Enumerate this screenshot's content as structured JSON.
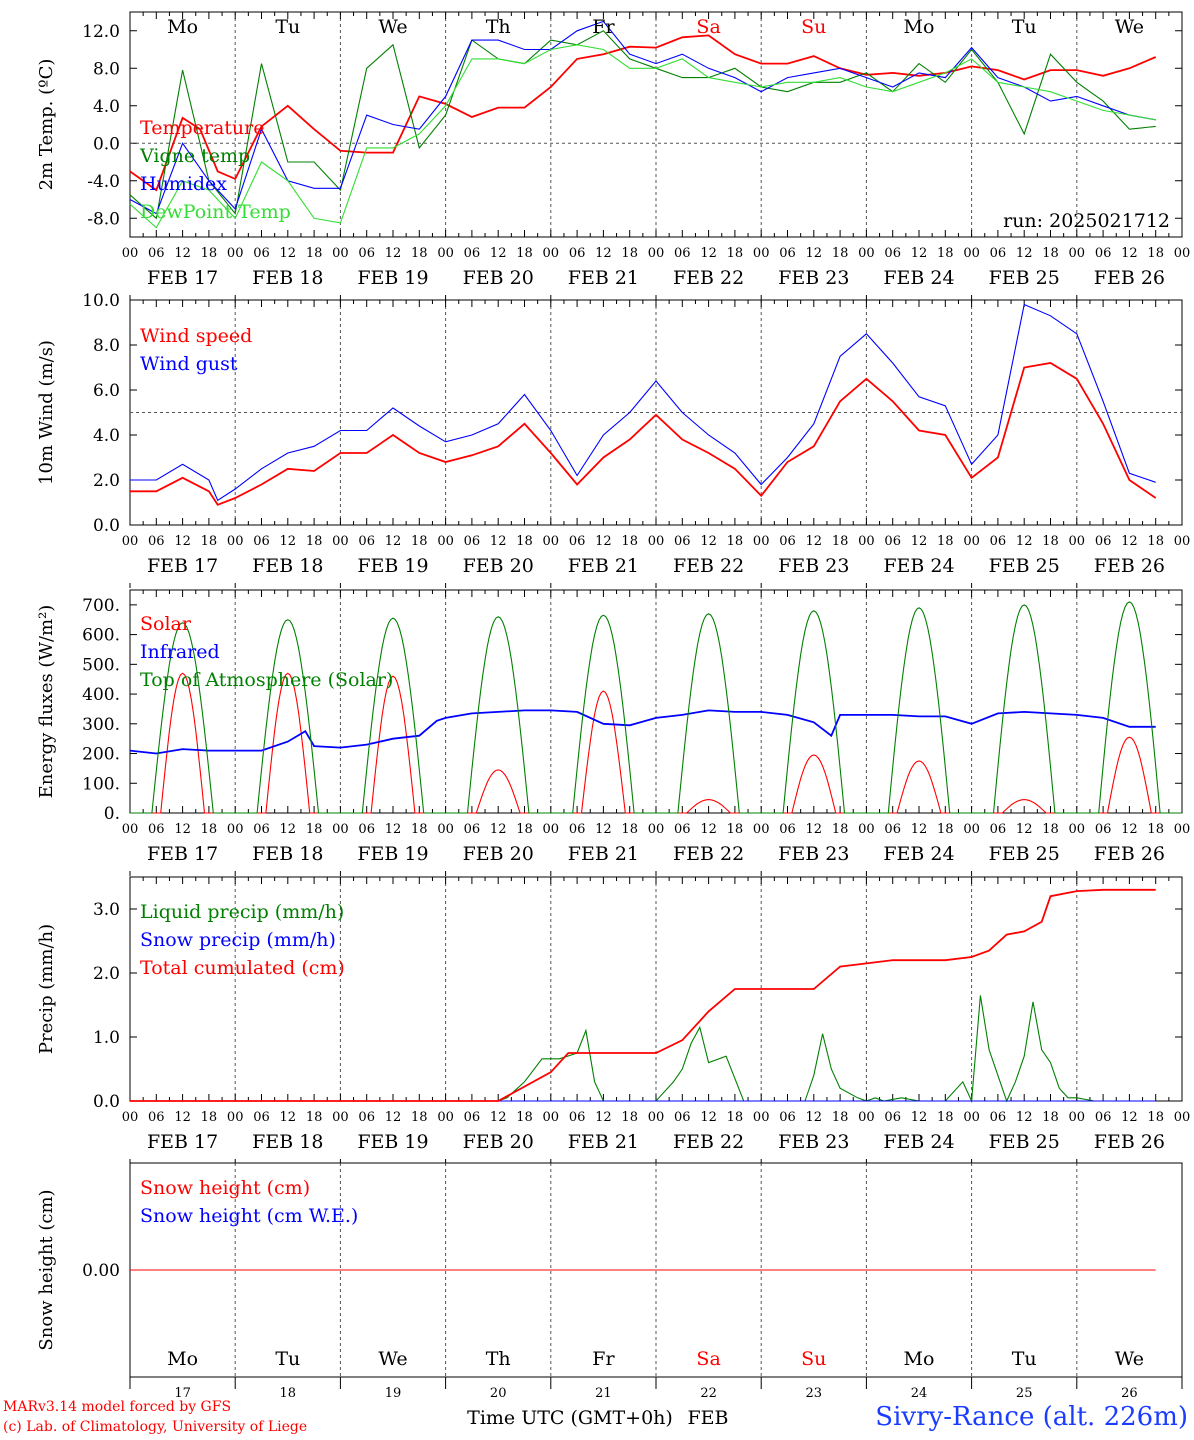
{
  "run_label": "run: 2025021712",
  "x_axis": {
    "hour_labels": [
      "00",
      "06",
      "12",
      "18"
    ],
    "dates": [
      "FEB 17",
      "FEB 18",
      "FEB 19",
      "FEB 20",
      "FEB 21",
      "FEB 22",
      "FEB 23",
      "FEB 24",
      "FEB 25",
      "FEB 26"
    ],
    "weekdays": [
      "Mo",
      "Tu",
      "We",
      "Th",
      "Fr",
      "Sa",
      "Su",
      "Mo",
      "Tu",
      "We"
    ],
    "day_numbers": [
      "17",
      "18",
      "19",
      "20",
      "21",
      "22",
      "23",
      "24",
      "25",
      "26"
    ],
    "xlabel": "Time UTC (GMT+0h)",
    "month": "FEB"
  },
  "colors": {
    "red": "#ff0000",
    "green": "#008000",
    "blue": "#0000ff",
    "lightgreen": "#33dd33",
    "weekend": "#ff0000",
    "text": "#000000",
    "title": "#1a3cff"
  },
  "footer": {
    "model_line": "MARv3.14 model forced by GFS",
    "lab_line": "(c) Lab. of Climatology, University of Liege",
    "station": "Sivry-Rance (alt. 226m)"
  },
  "chart_data": [
    {
      "type": "line",
      "ylabel": "2m Temp. (ºC)",
      "ylim": [
        -10,
        14
      ],
      "yticks": [
        -8,
        -4,
        0,
        4,
        8,
        12
      ],
      "ytick_labels": [
        "-8.0",
        "-4.0",
        "0.0",
        "4.0",
        "8.0",
        "12.0"
      ],
      "reference_line": 0,
      "x_unit": "hours since FEB 17 00 UTC",
      "series": [
        {
          "name": "Temperature",
          "color": "red",
          "x": [
            0,
            6,
            12,
            16,
            20,
            24,
            30,
            36,
            42,
            48,
            54,
            60,
            66,
            72,
            78,
            84,
            90,
            96,
            102,
            108,
            114,
            120,
            126,
            132,
            138,
            144,
            150,
            156,
            162,
            168,
            174,
            180,
            186,
            192,
            198,
            204,
            210,
            216,
            222,
            228,
            234
          ],
          "y": [
            -3,
            -5,
            2.7,
            1.5,
            -3,
            -3.8,
            1.8,
            4,
            1.5,
            -0.8,
            -1,
            -1,
            5,
            4.2,
            2.8,
            3.8,
            3.8,
            6,
            9,
            9.5,
            10.3,
            10.2,
            11.3,
            11.5,
            9.5,
            8.5,
            8.5,
            9.3,
            8,
            7.3,
            7.5,
            7.2,
            7.5,
            8.2,
            7.8,
            6.8,
            7.8,
            7.8,
            7.2,
            8,
            9.2
          ]
        },
        {
          "name": "Vigne temp",
          "color": "green",
          "x": [
            0,
            6,
            12,
            18,
            24,
            30,
            36,
            42,
            48,
            54,
            60,
            66,
            72,
            78,
            84,
            90,
            96,
            102,
            108,
            114,
            120,
            126,
            132,
            138,
            144,
            150,
            156,
            162,
            168,
            174,
            180,
            186,
            192,
            198,
            204,
            210,
            216,
            222,
            228,
            234
          ],
          "y": [
            -5.5,
            -8,
            7.8,
            -4,
            -7.5,
            8.5,
            -2,
            -2,
            -5,
            8,
            10.5,
            -0.5,
            3,
            11,
            9,
            8.5,
            11,
            10.5,
            12,
            9,
            8,
            7,
            7,
            8,
            6,
            5.5,
            6.5,
            6.5,
            7.5,
            5.5,
            8.5,
            6.5,
            10,
            6.5,
            1,
            9.5,
            6.5,
            4.5,
            1.5,
            1.8
          ]
        },
        {
          "name": "Humidex",
          "color": "blue",
          "x": [
            0,
            6,
            12,
            18,
            24,
            30,
            36,
            42,
            48,
            54,
            60,
            66,
            72,
            78,
            84,
            90,
            96,
            102,
            108,
            114,
            120,
            126,
            132,
            138,
            144,
            150,
            156,
            162,
            168,
            174,
            180,
            186,
            192,
            198,
            204,
            210,
            216,
            222,
            228,
            234
          ],
          "y": [
            -6,
            -7.5,
            0,
            -4,
            -7,
            1.5,
            -4,
            -4.8,
            -4.8,
            3,
            2,
            1.5,
            5,
            11,
            11,
            10,
            10,
            12,
            13,
            9.5,
            8.5,
            9.5,
            8,
            7,
            5.5,
            7,
            7.5,
            8,
            7,
            6,
            7.5,
            7,
            10.2,
            7,
            6,
            4.5,
            5,
            4,
            3,
            2.5
          ]
        },
        {
          "name": "DewPoint Temp",
          "color": "lightgreen",
          "x": [
            0,
            6,
            12,
            18,
            24,
            30,
            36,
            42,
            48,
            54,
            60,
            66,
            72,
            78,
            84,
            90,
            96,
            102,
            108,
            114,
            120,
            126,
            132,
            138,
            144,
            150,
            156,
            162,
            168,
            174,
            180,
            186,
            192,
            198,
            204,
            210,
            216,
            222,
            228,
            234
          ],
          "y": [
            -6.5,
            -9,
            -4,
            -5,
            -8,
            -2,
            -4,
            -8,
            -8.5,
            -0.5,
            -0.5,
            1,
            4,
            9,
            9,
            8.5,
            10,
            10.5,
            10,
            8,
            8,
            9,
            7,
            6.5,
            6,
            6.5,
            6.5,
            7,
            6,
            5.5,
            6.5,
            7.5,
            9,
            6.5,
            6,
            5.5,
            4.5,
            3.5,
            3,
            2.5
          ]
        }
      ]
    },
    {
      "type": "line",
      "ylabel": "10m Wind (m/s)",
      "ylim": [
        0,
        10
      ],
      "yticks": [
        0,
        2,
        4,
        6,
        8,
        10
      ],
      "ytick_labels": [
        "0.0",
        "2.0",
        "4.0",
        "6.0",
        "8.0",
        "10.0"
      ],
      "reference_line": 5,
      "x_unit": "hours since FEB 17 00 UTC",
      "series": [
        {
          "name": "Wind speed",
          "color": "red",
          "x": [
            0,
            6,
            12,
            18,
            20,
            24,
            30,
            36,
            42,
            48,
            54,
            60,
            66,
            72,
            78,
            84,
            90,
            96,
            102,
            108,
            114,
            120,
            126,
            132,
            138,
            144,
            150,
            156,
            162,
            168,
            174,
            180,
            186,
            192,
            198,
            204,
            210,
            216,
            222,
            228,
            234
          ],
          "y": [
            1.5,
            1.5,
            2.1,
            1.5,
            0.9,
            1.2,
            1.8,
            2.5,
            2.4,
            3.2,
            3.2,
            4,
            3.2,
            2.8,
            3.1,
            3.5,
            4.5,
            3.2,
            1.8,
            3,
            3.8,
            4.9,
            3.8,
            3.2,
            2.5,
            1.3,
            2.8,
            3.5,
            5.5,
            6.5,
            5.5,
            4.2,
            4,
            2.1,
            3,
            7,
            7.2,
            6.5,
            4.5,
            2,
            1.2
          ]
        },
        {
          "name": "Wind gust",
          "color": "blue",
          "x": [
            0,
            6,
            12,
            18,
            20,
            24,
            30,
            36,
            42,
            48,
            54,
            60,
            66,
            72,
            78,
            84,
            90,
            96,
            102,
            108,
            114,
            120,
            126,
            132,
            138,
            144,
            150,
            156,
            162,
            168,
            174,
            180,
            186,
            192,
            198,
            204,
            210,
            216,
            222,
            228,
            234
          ],
          "y": [
            2,
            2,
            2.7,
            2,
            1.1,
            1.6,
            2.5,
            3.2,
            3.5,
            4.2,
            4.2,
            5.2,
            4.4,
            3.7,
            4,
            4.5,
            5.8,
            4.2,
            2.2,
            4,
            5,
            6.4,
            5,
            4,
            3.2,
            1.8,
            3,
            4.5,
            7.5,
            8.5,
            7.2,
            5.7,
            5.3,
            2.7,
            4,
            9.8,
            9.3,
            8.5,
            5.5,
            2.3,
            1.9
          ]
        }
      ]
    },
    {
      "type": "line",
      "ylabel": "Energy fluxes (W/m²)",
      "ylim": [
        0,
        750
      ],
      "yticks": [
        0,
        100,
        200,
        300,
        400,
        500,
        600,
        700
      ],
      "ytick_labels": [
        "0.",
        "100.",
        "200.",
        "300.",
        "400.",
        "500.",
        "600.",
        "700."
      ],
      "x_unit": "hours since FEB 17 00 UTC",
      "series": [
        {
          "name": "Solar",
          "color": "red",
          "daily_peak": [
            470,
            470,
            460,
            145,
            410,
            45,
            195,
            175,
            45,
            255
          ]
        },
        {
          "name": "Infrared",
          "color": "blue",
          "x": [
            0,
            6,
            12,
            18,
            24,
            30,
            36,
            40,
            42,
            48,
            54,
            60,
            66,
            70,
            72,
            78,
            84,
            90,
            96,
            102,
            108,
            114,
            120,
            126,
            132,
            138,
            144,
            150,
            156,
            160,
            162,
            168,
            174,
            180,
            186,
            192,
            198,
            204,
            210,
            216,
            222,
            228,
            234
          ],
          "y": [
            210,
            200,
            215,
            210,
            210,
            210,
            240,
            275,
            225,
            220,
            230,
            250,
            260,
            310,
            320,
            335,
            340,
            345,
            345,
            340,
            300,
            295,
            320,
            330,
            345,
            340,
            340,
            330,
            305,
            260,
            330,
            330,
            330,
            325,
            325,
            300,
            335,
            340,
            335,
            330,
            320,
            290,
            290
          ]
        },
        {
          "name": "Top of Atmosphere (Solar)",
          "color": "green",
          "daily_peak": [
            640,
            650,
            655,
            660,
            665,
            670,
            680,
            690,
            700,
            710
          ]
        }
      ]
    },
    {
      "type": "line",
      "ylabel": "Precip (mm/h)",
      "ylim": [
        0,
        3.5
      ],
      "yticks": [
        0,
        1,
        2,
        3
      ],
      "ytick_labels": [
        "0.0",
        "1.0",
        "2.0",
        "3.0"
      ],
      "x_unit": "hours since FEB 17 00 UTC",
      "series": [
        {
          "name": "Liquid precip (mm/h)",
          "color": "green",
          "x": [
            0,
            84,
            86,
            90,
            94,
            98,
            102,
            104,
            106,
            108,
            110,
            120,
            124,
            126,
            128,
            130,
            132,
            136,
            140,
            144,
            150,
            152,
            154,
            156,
            158,
            160,
            162,
            166,
            168,
            170,
            172,
            176,
            180,
            186,
            190,
            192,
            194,
            196,
            198,
            200,
            202,
            204,
            206,
            208,
            210,
            212,
            214,
            216,
            220,
            234
          ],
          "y": [
            0,
            0,
            0.05,
            0.3,
            0.66,
            0.66,
            0.75,
            1.1,
            0.3,
            0,
            0,
            0,
            0.3,
            0.5,
            0.9,
            1.15,
            0.6,
            0.7,
            0,
            0,
            0,
            0,
            0,
            0.4,
            1.05,
            0.5,
            0.2,
            0.05,
            0,
            0.05,
            0,
            0.05,
            0,
            0,
            0.3,
            0,
            1.65,
            0.8,
            0.4,
            0,
            0.3,
            0.7,
            1.55,
            0.8,
            0.6,
            0.2,
            0.05,
            0.05,
            0,
            0
          ]
        },
        {
          "name": "Snow precip (mm/h)",
          "color": "blue",
          "x": [
            0,
            234
          ],
          "y": [
            0,
            0
          ]
        },
        {
          "name": "Total cumulated (cm)",
          "color": "red",
          "x": [
            0,
            84,
            96,
            100,
            120,
            126,
            132,
            138,
            144,
            156,
            162,
            168,
            174,
            186,
            192,
            196,
            200,
            204,
            208,
            210,
            216,
            222,
            234
          ],
          "y": [
            0,
            0,
            0.45,
            0.75,
            0.75,
            0.95,
            1.4,
            1.75,
            1.75,
            1.75,
            2.1,
            2.15,
            2.2,
            2.2,
            2.25,
            2.35,
            2.6,
            2.65,
            2.8,
            3.2,
            3.28,
            3.3,
            3.3
          ]
        }
      ]
    },
    {
      "type": "line",
      "ylabel": "Snow height (cm)",
      "ytick_labels": [
        "0.00"
      ],
      "x_unit": "hours since FEB 17 00 UTC",
      "series": [
        {
          "name": "Snow height (cm)",
          "color": "red",
          "x": [
            0,
            234
          ],
          "y": [
            0,
            0
          ]
        },
        {
          "name": "Snow height (cm W.E.)",
          "color": "blue",
          "x": [],
          "y": []
        }
      ]
    }
  ]
}
